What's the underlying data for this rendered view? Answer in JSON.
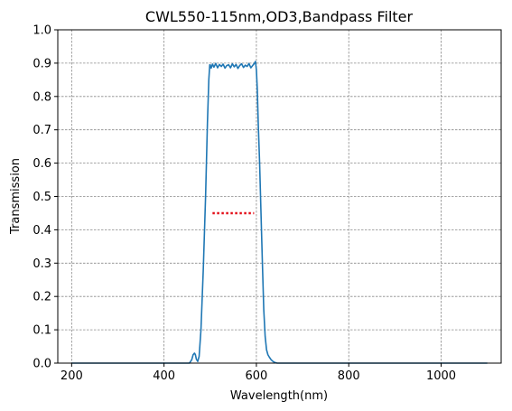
{
  "chart_data": {
    "type": "line",
    "title": "CWL550-115nm,OD3,Bandpass Filter",
    "xlabel": "Wavelength(nm)",
    "ylabel": "Transmission",
    "xlim": [
      170,
      1130
    ],
    "ylim": [
      0,
      1.0
    ],
    "xticks": [
      200,
      400,
      600,
      800,
      1000
    ],
    "yticks": [
      0.0,
      0.1,
      0.2,
      0.3,
      0.4,
      0.5,
      0.6,
      0.7,
      0.8,
      0.9,
      1.0
    ],
    "grid": true,
    "series": [
      {
        "color": "#1f77b4",
        "style": "solid",
        "x": [
          200,
          455,
          460,
          463,
          466,
          468,
          470,
          473,
          476,
          480,
          485,
          490,
          494,
          497,
          499,
          500,
          502,
          505,
          508,
          512,
          516,
          520,
          524,
          528,
          532,
          536,
          540,
          544,
          548,
          552,
          556,
          560,
          564,
          568,
          572,
          576,
          580,
          584,
          588,
          592,
          596,
          598,
          600,
          602,
          604,
          607,
          610,
          613,
          616,
          619,
          622,
          625,
          628,
          632,
          636,
          640,
          645,
          650,
          1100
        ],
        "y": [
          0.0,
          0.0,
          0.01,
          0.025,
          0.03,
          0.025,
          0.012,
          0.005,
          0.02,
          0.1,
          0.28,
          0.5,
          0.72,
          0.85,
          0.895,
          0.895,
          0.885,
          0.897,
          0.888,
          0.899,
          0.886,
          0.896,
          0.89,
          0.897,
          0.885,
          0.893,
          0.895,
          0.886,
          0.898,
          0.889,
          0.896,
          0.884,
          0.893,
          0.898,
          0.887,
          0.894,
          0.89,
          0.899,
          0.886,
          0.893,
          0.9,
          0.905,
          0.88,
          0.82,
          0.72,
          0.6,
          0.45,
          0.3,
          0.16,
          0.08,
          0.04,
          0.025,
          0.018,
          0.01,
          0.005,
          0.002,
          0.0,
          0.0,
          0.0
        ]
      },
      {
        "color": "#e3101a",
        "style": "dotted",
        "x": [
          505,
          595
        ],
        "y": [
          0.45,
          0.45
        ]
      }
    ]
  }
}
